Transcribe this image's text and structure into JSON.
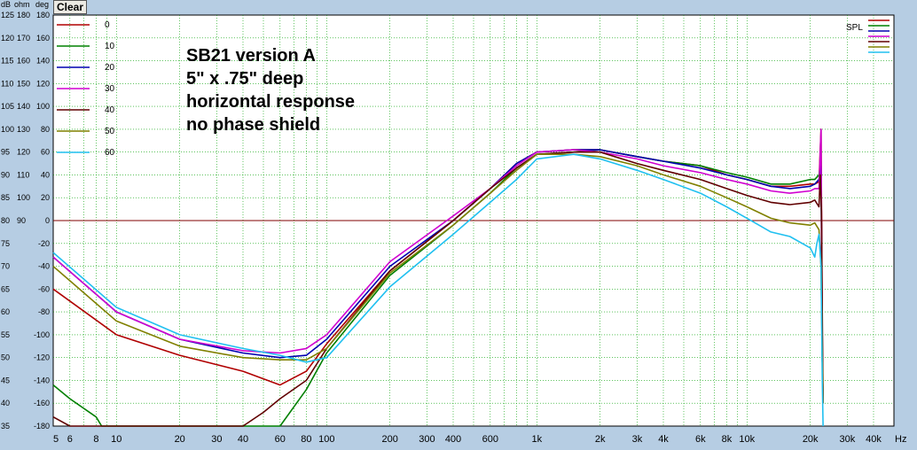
{
  "toolbar": {
    "clear_label": "Clear"
  },
  "annotation": {
    "lines": [
      "SB21 version A",
      "5\" x .75\" deep",
      "horizontal response",
      "no phase shield"
    ]
  },
  "chart_data": {
    "type": "line",
    "title": "",
    "xlabel": "Hz",
    "x_scale": "log",
    "xlim": [
      5,
      50000
    ],
    "x_ticks": [
      {
        "v": 5,
        "label": "5"
      },
      {
        "v": 6,
        "label": "6"
      },
      {
        "v": 8,
        "label": "8"
      },
      {
        "v": 10,
        "label": "10"
      },
      {
        "v": 20,
        "label": "20"
      },
      {
        "v": 30,
        "label": "30"
      },
      {
        "v": 40,
        "label": "40"
      },
      {
        "v": 60,
        "label": "60"
      },
      {
        "v": 80,
        "label": "80"
      },
      {
        "v": 100,
        "label": "100"
      },
      {
        "v": 200,
        "label": "200"
      },
      {
        "v": 300,
        "label": "300"
      },
      {
        "v": 400,
        "label": "400"
      },
      {
        "v": 600,
        "label": "600"
      },
      {
        "v": 1000,
        "label": "1k"
      },
      {
        "v": 2000,
        "label": "2k"
      },
      {
        "v": 3000,
        "label": "3k"
      },
      {
        "v": 4000,
        "label": "4k"
      },
      {
        "v": 6000,
        "label": "6k"
      },
      {
        "v": 8000,
        "label": "8k"
      },
      {
        "v": 10000,
        "label": "10k"
      },
      {
        "v": 20000,
        "label": "20k"
      },
      {
        "v": 30000,
        "label": "30k"
      },
      {
        "v": 40000,
        "label": "40k"
      }
    ],
    "x_unit_label": "Hz",
    "y_header": [
      "dB",
      "ohm",
      "deg"
    ],
    "ylim": [
      35,
      125
    ],
    "y_ticks": [
      {
        "db": 125,
        "ohm": "180",
        "deg": "180"
      },
      {
        "db": 120,
        "ohm": "170",
        "deg": "160"
      },
      {
        "db": 115,
        "ohm": "160",
        "deg": "140"
      },
      {
        "db": 110,
        "ohm": "150",
        "deg": "120"
      },
      {
        "db": 105,
        "ohm": "140",
        "deg": "100"
      },
      {
        "db": 100,
        "ohm": "130",
        "deg": "80"
      },
      {
        "db": 95,
        "ohm": "120",
        "deg": "60"
      },
      {
        "db": 90,
        "ohm": "110",
        "deg": "40"
      },
      {
        "db": 85,
        "ohm": "100",
        "deg": "20"
      },
      {
        "db": 80,
        "ohm": "90",
        "deg": "0"
      },
      {
        "db": 75,
        "ohm": "",
        "deg": "-20"
      },
      {
        "db": 70,
        "ohm": "",
        "deg": "-40"
      },
      {
        "db": 65,
        "ohm": "",
        "deg": "-60"
      },
      {
        "db": 60,
        "ohm": "",
        "deg": "-80"
      },
      {
        "db": 55,
        "ohm": "",
        "deg": "-100"
      },
      {
        "db": 50,
        "ohm": "",
        "deg": "-120"
      },
      {
        "db": 45,
        "ohm": "",
        "deg": "-140"
      },
      {
        "db": 40,
        "ohm": "",
        "deg": "-160"
      },
      {
        "db": 35,
        "ohm": "",
        "deg": "-180"
      }
    ],
    "reference_line_db": 80,
    "reference_line_color": "#800000",
    "grid": true,
    "grid_color": "#00a000",
    "background": "#ffffff",
    "legend": {
      "placement": "top-left",
      "label_color": "#000000"
    },
    "spl_legend": {
      "placement": "top-right",
      "label": "SPL"
    },
    "series": [
      {
        "name": "0",
        "color": "#b00000",
        "points": [
          [
            5,
            65
          ],
          [
            10,
            55
          ],
          [
            20,
            50.5
          ],
          [
            40,
            47
          ],
          [
            60,
            44
          ],
          [
            80,
            47
          ],
          [
            100,
            53
          ],
          [
            200,
            69
          ],
          [
            400,
            80
          ],
          [
            600,
            87
          ],
          [
            800,
            92.5
          ],
          [
            1000,
            95
          ],
          [
            1500,
            95.5
          ],
          [
            2000,
            95.5
          ],
          [
            3000,
            94
          ],
          [
            4000,
            93
          ],
          [
            6000,
            92
          ],
          [
            8000,
            90
          ],
          [
            10000,
            89
          ],
          [
            13000,
            87.5
          ],
          [
            16000,
            87.5
          ],
          [
            20000,
            88
          ],
          [
            21000,
            88
          ],
          [
            22000,
            88.5
          ],
          [
            22500,
            100
          ],
          [
            22800,
            55
          ],
          [
            23000,
            40
          ]
        ]
      },
      {
        "name": "10",
        "color": "#008000",
        "points": [
          [
            5,
            44
          ],
          [
            6,
            41
          ],
          [
            8,
            37
          ],
          [
            8.5,
            35
          ],
          [
            60,
            35
          ],
          [
            80,
            43
          ],
          [
            100,
            51
          ],
          [
            200,
            68
          ],
          [
            400,
            79
          ],
          [
            600,
            86
          ],
          [
            800,
            91.5
          ],
          [
            1000,
            94.5
          ],
          [
            1500,
            95
          ],
          [
            2000,
            95.5
          ],
          [
            3000,
            94
          ],
          [
            4000,
            93
          ],
          [
            6000,
            92
          ],
          [
            8000,
            90.5
          ],
          [
            10000,
            89.5
          ],
          [
            13000,
            88
          ],
          [
            16000,
            88
          ],
          [
            20000,
            89
          ],
          [
            21000,
            89
          ],
          [
            22000,
            90
          ],
          [
            22500,
            93
          ],
          [
            22800,
            50
          ],
          [
            23000,
            40
          ]
        ]
      },
      {
        "name": "20",
        "color": "#0000b0",
        "points": [
          [
            5,
            72
          ],
          [
            10,
            60
          ],
          [
            20,
            54
          ],
          [
            40,
            51
          ],
          [
            60,
            50
          ],
          [
            80,
            50.5
          ],
          [
            100,
            54
          ],
          [
            200,
            70
          ],
          [
            400,
            80
          ],
          [
            600,
            87
          ],
          [
            800,
            92.5
          ],
          [
            1000,
            95
          ],
          [
            1500,
            95.5
          ],
          [
            2000,
            95.5
          ],
          [
            3000,
            94
          ],
          [
            4000,
            93
          ],
          [
            6000,
            91.5
          ],
          [
            8000,
            90
          ],
          [
            10000,
            89
          ],
          [
            13000,
            87.5
          ],
          [
            16000,
            87
          ],
          [
            20000,
            87.5
          ],
          [
            21000,
            88
          ],
          [
            22000,
            89
          ],
          [
            22500,
            92
          ],
          [
            22800,
            50
          ],
          [
            23000,
            40
          ]
        ]
      },
      {
        "name": "30",
        "color": "#d000d0",
        "points": [
          [
            5,
            72
          ],
          [
            10,
            60
          ],
          [
            20,
            54
          ],
          [
            40,
            51.5
          ],
          [
            60,
            51
          ],
          [
            80,
            52
          ],
          [
            100,
            55
          ],
          [
            200,
            71
          ],
          [
            400,
            81
          ],
          [
            600,
            87
          ],
          [
            800,
            92
          ],
          [
            1000,
            95
          ],
          [
            1500,
            95.5
          ],
          [
            2000,
            95
          ],
          [
            3000,
            93.5
          ],
          [
            4000,
            92
          ],
          [
            6000,
            90.5
          ],
          [
            8000,
            89
          ],
          [
            10000,
            88
          ],
          [
            13000,
            86.5
          ],
          [
            16000,
            86
          ],
          [
            20000,
            86.5
          ],
          [
            21000,
            87
          ],
          [
            22000,
            87
          ],
          [
            22500,
            100
          ],
          [
            22800,
            50
          ],
          [
            23000,
            40
          ]
        ]
      },
      {
        "name": "40",
        "color": "#600000",
        "points": [
          [
            5,
            37
          ],
          [
            6,
            35
          ],
          [
            40,
            35
          ],
          [
            50,
            38
          ],
          [
            60,
            41
          ],
          [
            80,
            45
          ],
          [
            100,
            52
          ],
          [
            200,
            69
          ],
          [
            400,
            80
          ],
          [
            600,
            87
          ],
          [
            800,
            91.5
          ],
          [
            1000,
            94.5
          ],
          [
            1500,
            95
          ],
          [
            2000,
            95
          ],
          [
            3000,
            92.5
          ],
          [
            4000,
            91
          ],
          [
            6000,
            89
          ],
          [
            8000,
            87
          ],
          [
            10000,
            85.5
          ],
          [
            13000,
            84
          ],
          [
            16000,
            83.5
          ],
          [
            20000,
            84
          ],
          [
            21000,
            84.5
          ],
          [
            22000,
            83
          ],
          [
            22300,
            90
          ],
          [
            22600,
            82
          ],
          [
            22800,
            60
          ],
          [
            23000,
            40
          ]
        ]
      },
      {
        "name": "50",
        "color": "#808000",
        "points": [
          [
            5,
            70
          ],
          [
            10,
            58
          ],
          [
            20,
            52.5
          ],
          [
            40,
            50
          ],
          [
            60,
            49.5
          ],
          [
            80,
            49.5
          ],
          [
            100,
            52
          ],
          [
            200,
            68.5
          ],
          [
            400,
            79
          ],
          [
            600,
            86
          ],
          [
            800,
            91
          ],
          [
            1000,
            94.5
          ],
          [
            1500,
            94.5
          ],
          [
            2000,
            94
          ],
          [
            3000,
            92
          ],
          [
            4000,
            90
          ],
          [
            6000,
            87.5
          ],
          [
            8000,
            85
          ],
          [
            10000,
            83
          ],
          [
            13000,
            80.5
          ],
          [
            16000,
            79.5
          ],
          [
            20000,
            79
          ],
          [
            21000,
            79.5
          ],
          [
            22000,
            78
          ],
          [
            22500,
            70
          ],
          [
            22800,
            50
          ],
          [
            23000,
            40
          ]
        ]
      },
      {
        "name": "60",
        "color": "#20c0f0",
        "points": [
          [
            5,
            73
          ],
          [
            10,
            61
          ],
          [
            20,
            55
          ],
          [
            40,
            52
          ],
          [
            60,
            50.5
          ],
          [
            80,
            49
          ],
          [
            100,
            50
          ],
          [
            200,
            65.5
          ],
          [
            400,
            77
          ],
          [
            600,
            84
          ],
          [
            800,
            89
          ],
          [
            1000,
            93.5
          ],
          [
            1500,
            94.5
          ],
          [
            2000,
            93.5
          ],
          [
            3000,
            91
          ],
          [
            4000,
            89
          ],
          [
            6000,
            86
          ],
          [
            8000,
            83
          ],
          [
            10000,
            80.5
          ],
          [
            13000,
            77.5
          ],
          [
            16000,
            76.5
          ],
          [
            20000,
            74
          ],
          [
            21000,
            72
          ],
          [
            21500,
            75
          ],
          [
            22000,
            77
          ],
          [
            22500,
            70
          ],
          [
            22800,
            45
          ],
          [
            23000,
            35
          ]
        ]
      }
    ]
  }
}
